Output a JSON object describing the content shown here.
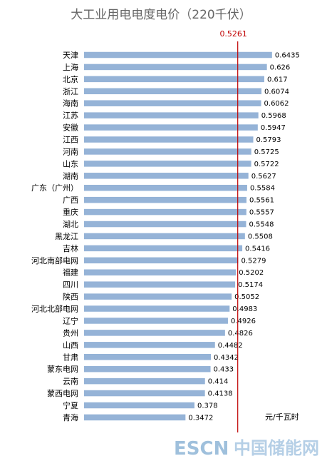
{
  "chart_data": {
    "type": "bar",
    "orientation": "horizontal",
    "title": "大工业用电电度电价（220千伏）",
    "unit": "元/千瓦时",
    "reference_line": {
      "value": 0.5261,
      "label": "0.5261",
      "color": "#c00000"
    },
    "bar_color": "#95b3d7",
    "xlim": [
      0,
      0.7
    ],
    "categories": [
      "天津",
      "上海",
      "北京",
      "浙江",
      "海南",
      "江苏",
      "安徽",
      "江西",
      "河南",
      "山东",
      "湖南",
      "广东（广州）",
      "广西",
      "重庆",
      "湖北",
      "黑龙江",
      "吉林",
      "河北南部电网",
      "福建",
      "四川",
      "陕西",
      "河北北部电网",
      "辽宁",
      "贵州",
      "山西",
      "甘肃",
      "蒙东电网",
      "云南",
      "蒙西电网",
      "宁夏",
      "青海"
    ],
    "values": [
      0.6435,
      0.626,
      0.617,
      0.6074,
      0.6062,
      0.5968,
      0.5947,
      0.5793,
      0.5725,
      0.5722,
      0.5627,
      0.5584,
      0.5561,
      0.5557,
      0.5548,
      0.5508,
      0.5416,
      0.5279,
      0.5202,
      0.5174,
      0.5052,
      0.4983,
      0.4926,
      0.4826,
      0.4482,
      0.4342,
      0.433,
      0.414,
      0.4138,
      0.378,
      0.3472
    ],
    "value_labels": [
      "0.6435",
      "0.626",
      "0.617",
      "0.6074",
      "0.6062",
      "0.5968",
      "0.5947",
      "0.5793",
      "0.5725",
      "0.5722",
      "0.5627",
      "0.5584",
      "0.5561",
      "0.5557",
      "0.5548",
      "0.5508",
      "0.5416",
      "0.5279",
      "0.5202",
      "0.5174",
      "0.5052",
      "0.4983",
      "0.4926",
      "0.4826",
      "0.4482",
      "0.4342",
      "0.433",
      "0.414",
      "0.4138",
      "0.378",
      "0.3472"
    ]
  },
  "watermark": {
    "latin": "ESCN",
    "cjk": "中国储能网"
  }
}
